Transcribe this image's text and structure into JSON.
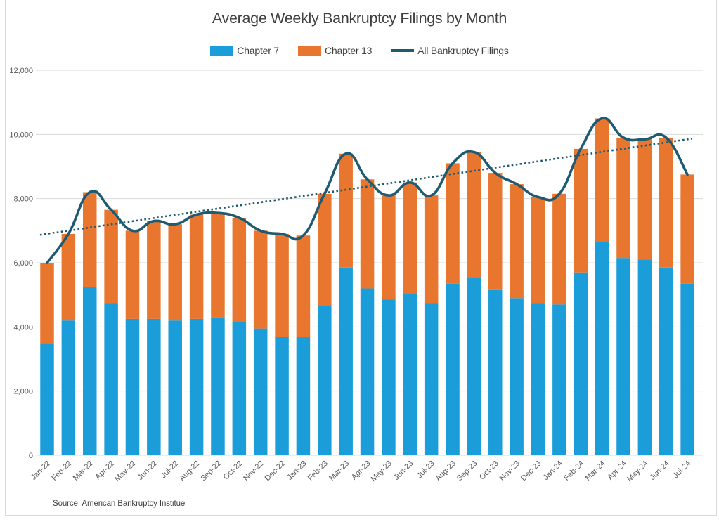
{
  "title": "Average Weekly Bankruptcy Filings by Month",
  "source": "Source: American Bankruptcy Institue",
  "legend": {
    "items": [
      {
        "label": "Chapter 7",
        "swatch": "box",
        "color": "#1b9dd9"
      },
      {
        "label": "Chapter 13",
        "swatch": "box",
        "color": "#e8762f"
      },
      {
        "label": "All Bankruptcy Filings",
        "swatch": "line",
        "color": "#1f5a73"
      }
    ]
  },
  "chart_data": {
    "type": "bar",
    "subtype": "stacked-bars-with-smooth-line-and-dotted-trendline",
    "title": "Average Weekly Bankruptcy Filings by Month",
    "categories": [
      "Jan-22",
      "Feb-22",
      "Mar-22",
      "Apr-22",
      "May-22",
      "Jun-22",
      "Jul-22",
      "Aug-22",
      "Sep-22",
      "Oct-22",
      "Nov-22",
      "Dec-22",
      "Jan-23",
      "Feb-23",
      "Mar-23",
      "Apr-23",
      "May-23",
      "Jun-23",
      "Jul-23",
      "Aug-23",
      "Sep-23",
      "Oct-23",
      "Nov-23",
      "Dec-23",
      "Jan-24",
      "Feb-24",
      "Mar-24",
      "Apr-24",
      "May-24",
      "Jun-24",
      "Jul-24"
    ],
    "series": [
      {
        "name": "Chapter 7",
        "type": "bar-stacked",
        "color": "#1b9dd9",
        "values": [
          3500,
          4200,
          5250,
          4750,
          4250,
          4250,
          4200,
          4250,
          4300,
          4150,
          3950,
          3700,
          3700,
          4650,
          5850,
          5200,
          4850,
          5050,
          4750,
          5350,
          5550,
          5150,
          4900,
          4750,
          4700,
          5700,
          6650,
          6150,
          6100,
          5850,
          5350
        ]
      },
      {
        "name": "Chapter 13",
        "type": "bar-stacked",
        "color": "#e8762f",
        "values": [
          2500,
          2700,
          2950,
          2900,
          2750,
          3050,
          3000,
          3250,
          3250,
          3250,
          3050,
          3200,
          3150,
          3500,
          3550,
          3400,
          3250,
          3450,
          3350,
          3750,
          3900,
          3650,
          3550,
          3300,
          3450,
          3850,
          3850,
          3750,
          3750,
          4050,
          3400
        ]
      },
      {
        "name": "All Bankruptcy Filings",
        "type": "line-smooth",
        "color": "#1f5a73",
        "values": [
          6000,
          6900,
          8200,
          7650,
          7000,
          7300,
          7200,
          7500,
          7550,
          7400,
          7000,
          6900,
          6850,
          8150,
          9400,
          8600,
          8100,
          8500,
          8100,
          9100,
          9450,
          8800,
          8450,
          8050,
          8150,
          9550,
          10500,
          9900,
          9850,
          9900,
          8750
        ]
      }
    ],
    "trendline": {
      "style": "dotted",
      "color": "#1f5a73",
      "start_value": 6870,
      "end_value": 9870
    },
    "y_axis": {
      "min": 0,
      "max": 12000,
      "tick_step": 2000,
      "tick_labels": [
        "0",
        "2,000",
        "4,000",
        "6,000",
        "8,000",
        "10,000",
        "12,000"
      ]
    },
    "x_axis": {
      "label_rotation_deg": 45
    },
    "grid": true,
    "legend_position": "top",
    "grid_color": "#d9d9d9",
    "axis_text_color": "#595959"
  }
}
